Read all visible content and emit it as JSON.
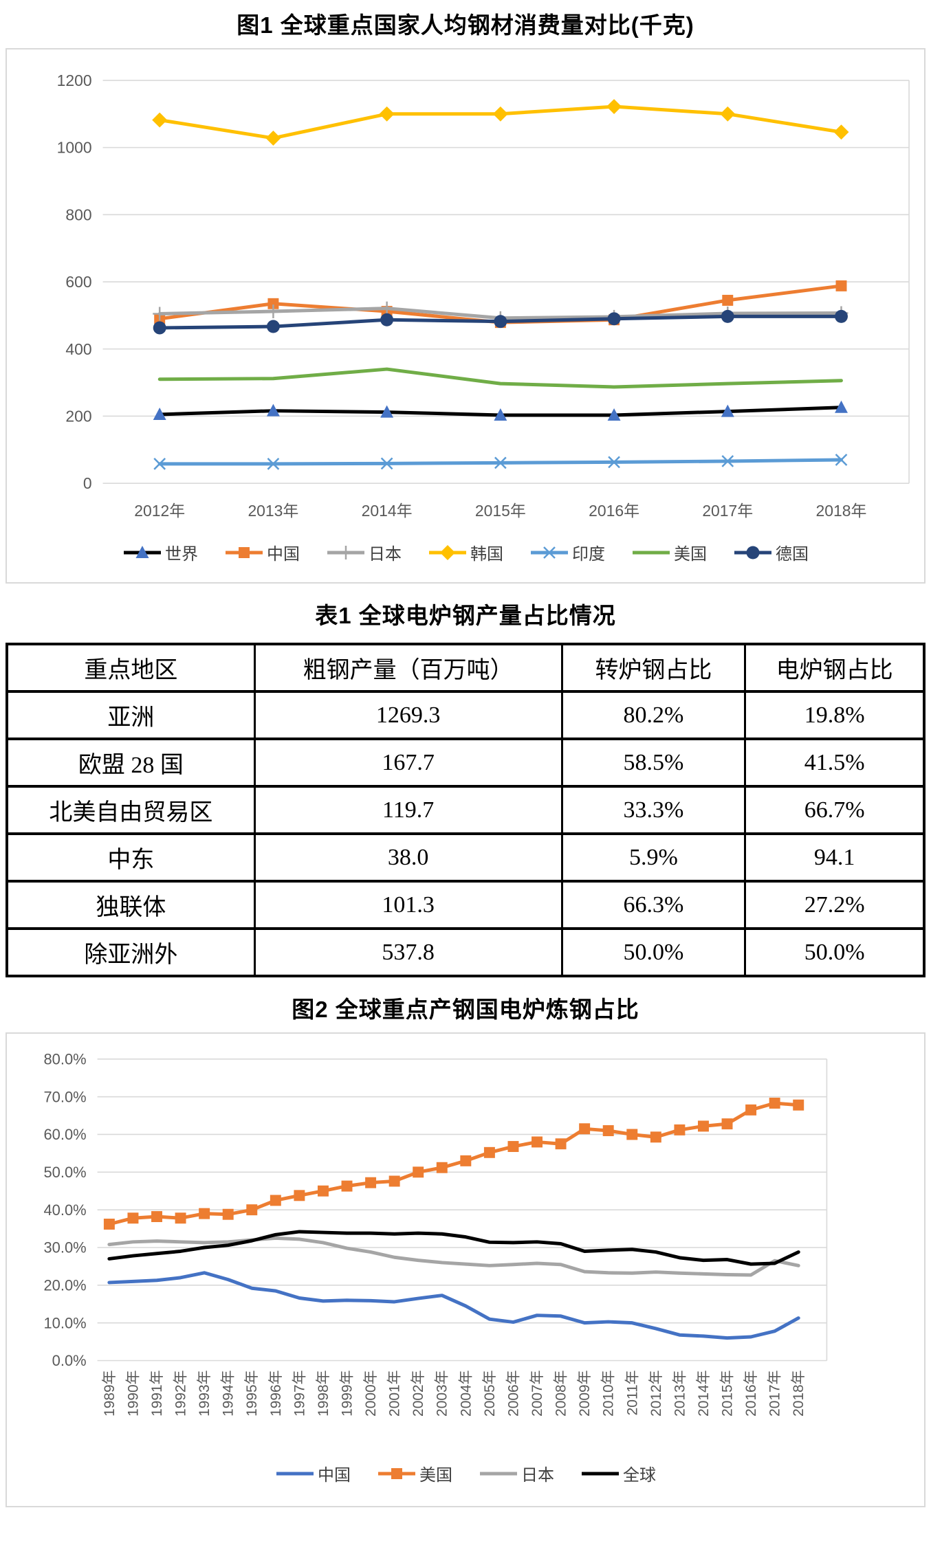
{
  "fig1": {
    "title": "图1 全球重点国家人均钢材消费量对比(千克)"
  },
  "table1": {
    "title": "表1 全球电炉钢产量占比情况",
    "headers": [
      "重点地区",
      "粗钢产量（百万吨）",
      "转炉钢占比",
      "电炉钢占比"
    ],
    "rows": [
      [
        "亚洲",
        "1269.3",
        "80.2%",
        "19.8%"
      ],
      [
        "欧盟 28 国",
        "167.7",
        "58.5%",
        "41.5%"
      ],
      [
        "北美自由贸易区",
        "119.7",
        "33.3%",
        "66.7%"
      ],
      [
        "中东",
        "38.0",
        "5.9%",
        "94.1"
      ],
      [
        "独联体",
        "101.3",
        "66.3%",
        "27.2%"
      ],
      [
        "除亚洲外",
        "537.8",
        "50.0%",
        "50.0%"
      ]
    ]
  },
  "fig2": {
    "title": "图2 全球重点产钢国电炉炼钢占比"
  },
  "colors": {
    "grid": "#d9d9d9",
    "tick_text": "#595959",
    "legend_text": "#404040"
  },
  "chart_data": [
    {
      "type": "line",
      "title": "图1 全球重点国家人均钢材消费量对比(千克)",
      "xlabel": "",
      "ylabel": "",
      "ylim": [
        0,
        1200
      ],
      "ytick_step": 200,
      "grid": true,
      "legend_position": "bottom",
      "categories": [
        "2012年",
        "2013年",
        "2014年",
        "2015年",
        "2016年",
        "2017年",
        "2018年"
      ],
      "series": [
        {
          "name": "世界",
          "key": "world",
          "color": "#000000",
          "marker": "triangle",
          "marker_color": "#4472C4",
          "values": [
            205,
            216,
            212,
            203,
            203,
            214,
            226
          ]
        },
        {
          "name": "中国",
          "key": "china",
          "color": "#ED7D31",
          "marker": "square",
          "values": [
            490,
            535,
            512,
            479,
            487,
            545,
            588
          ]
        },
        {
          "name": "日本",
          "key": "japan",
          "color": "#A5A5A5",
          "marker": "plus",
          "values": [
            505,
            512,
            521,
            492,
            496,
            506,
            507
          ]
        },
        {
          "name": "韩国",
          "key": "korea",
          "color": "#FFC000",
          "marker": "diamond",
          "values": [
            1082,
            1028,
            1100,
            1100,
            1122,
            1100,
            1046
          ]
        },
        {
          "name": "印度",
          "key": "india",
          "color": "#5B9BD5",
          "marker": "x",
          "values": [
            58,
            58,
            59,
            61,
            63,
            66,
            70
          ]
        },
        {
          "name": "美国",
          "key": "usa",
          "color": "#70AD47",
          "marker": "none",
          "values": [
            310,
            312,
            340,
            297,
            287,
            297,
            306
          ]
        },
        {
          "name": "德国",
          "key": "germany",
          "color": "#264478",
          "marker": "circle",
          "values": [
            463,
            467,
            487,
            482,
            490,
            497,
            497
          ]
        }
      ]
    },
    {
      "type": "line",
      "title": "图2 全球重点产钢国电炉炼钢占比",
      "xlabel": "",
      "ylabel": "",
      "ylim": [
        0,
        80
      ],
      "ytick_step": 10,
      "yformat": "percent1",
      "grid": true,
      "legend_position": "bottom",
      "categories": [
        "1989年",
        "1990年",
        "1991年",
        "1992年",
        "1993年",
        "1994年",
        "1995年",
        "1996年",
        "1997年",
        "1998年",
        "1999年",
        "2000年",
        "2001年",
        "2002年",
        "2003年",
        "2004年",
        "2005年",
        "2006年",
        "2007年",
        "2008年",
        "2009年",
        "2010年",
        "2011年",
        "2012年",
        "2013年",
        "2014年",
        "2015年",
        "2016年",
        "2017年",
        "2018年"
      ],
      "series": [
        {
          "name": "中国",
          "key": "china",
          "color": "#4472C4",
          "marker": "none",
          "values": [
            20.7,
            21.0,
            21.3,
            22.0,
            23.3,
            21.5,
            19.2,
            18.5,
            16.6,
            15.8,
            16.0,
            15.9,
            15.6,
            16.5,
            17.3,
            14.5,
            11.0,
            10.2,
            12.0,
            11.8,
            10.0,
            10.3,
            10.0,
            8.5,
            6.8,
            6.5,
            6.0,
            6.3,
            7.8,
            11.3
          ]
        },
        {
          "name": "美国",
          "key": "usa",
          "color": "#ED7D31",
          "marker": "square",
          "values": [
            36.2,
            37.8,
            38.2,
            37.8,
            39.0,
            38.8,
            40.0,
            42.5,
            43.8,
            45.0,
            46.3,
            47.2,
            47.6,
            50.0,
            51.2,
            53.0,
            55.2,
            56.8,
            58.0,
            57.5,
            61.5,
            61.0,
            60.0,
            59.3,
            61.2,
            62.2,
            62.8,
            66.5,
            68.3,
            67.8
          ]
        },
        {
          "name": "日本",
          "key": "japan",
          "color": "#A5A5A5",
          "marker": "none",
          "values": [
            30.8,
            31.5,
            31.7,
            31.5,
            31.3,
            31.5,
            32.0,
            32.5,
            32.2,
            31.3,
            29.8,
            28.8,
            27.4,
            26.6,
            26.0,
            25.6,
            25.2,
            25.5,
            25.8,
            25.5,
            23.6,
            23.3,
            23.2,
            23.5,
            23.2,
            23.0,
            22.8,
            22.7,
            26.5,
            25.2
          ]
        },
        {
          "name": "全球",
          "key": "global",
          "color": "#000000",
          "marker": "none",
          "values": [
            27.0,
            27.8,
            28.4,
            29.0,
            30.0,
            30.6,
            31.8,
            33.4,
            34.2,
            34.0,
            33.8,
            33.8,
            33.6,
            33.8,
            33.6,
            32.8,
            31.4,
            31.3,
            31.5,
            31.0,
            29.0,
            29.3,
            29.5,
            28.8,
            27.3,
            26.6,
            26.8,
            25.6,
            25.8,
            28.8
          ]
        }
      ]
    }
  ]
}
